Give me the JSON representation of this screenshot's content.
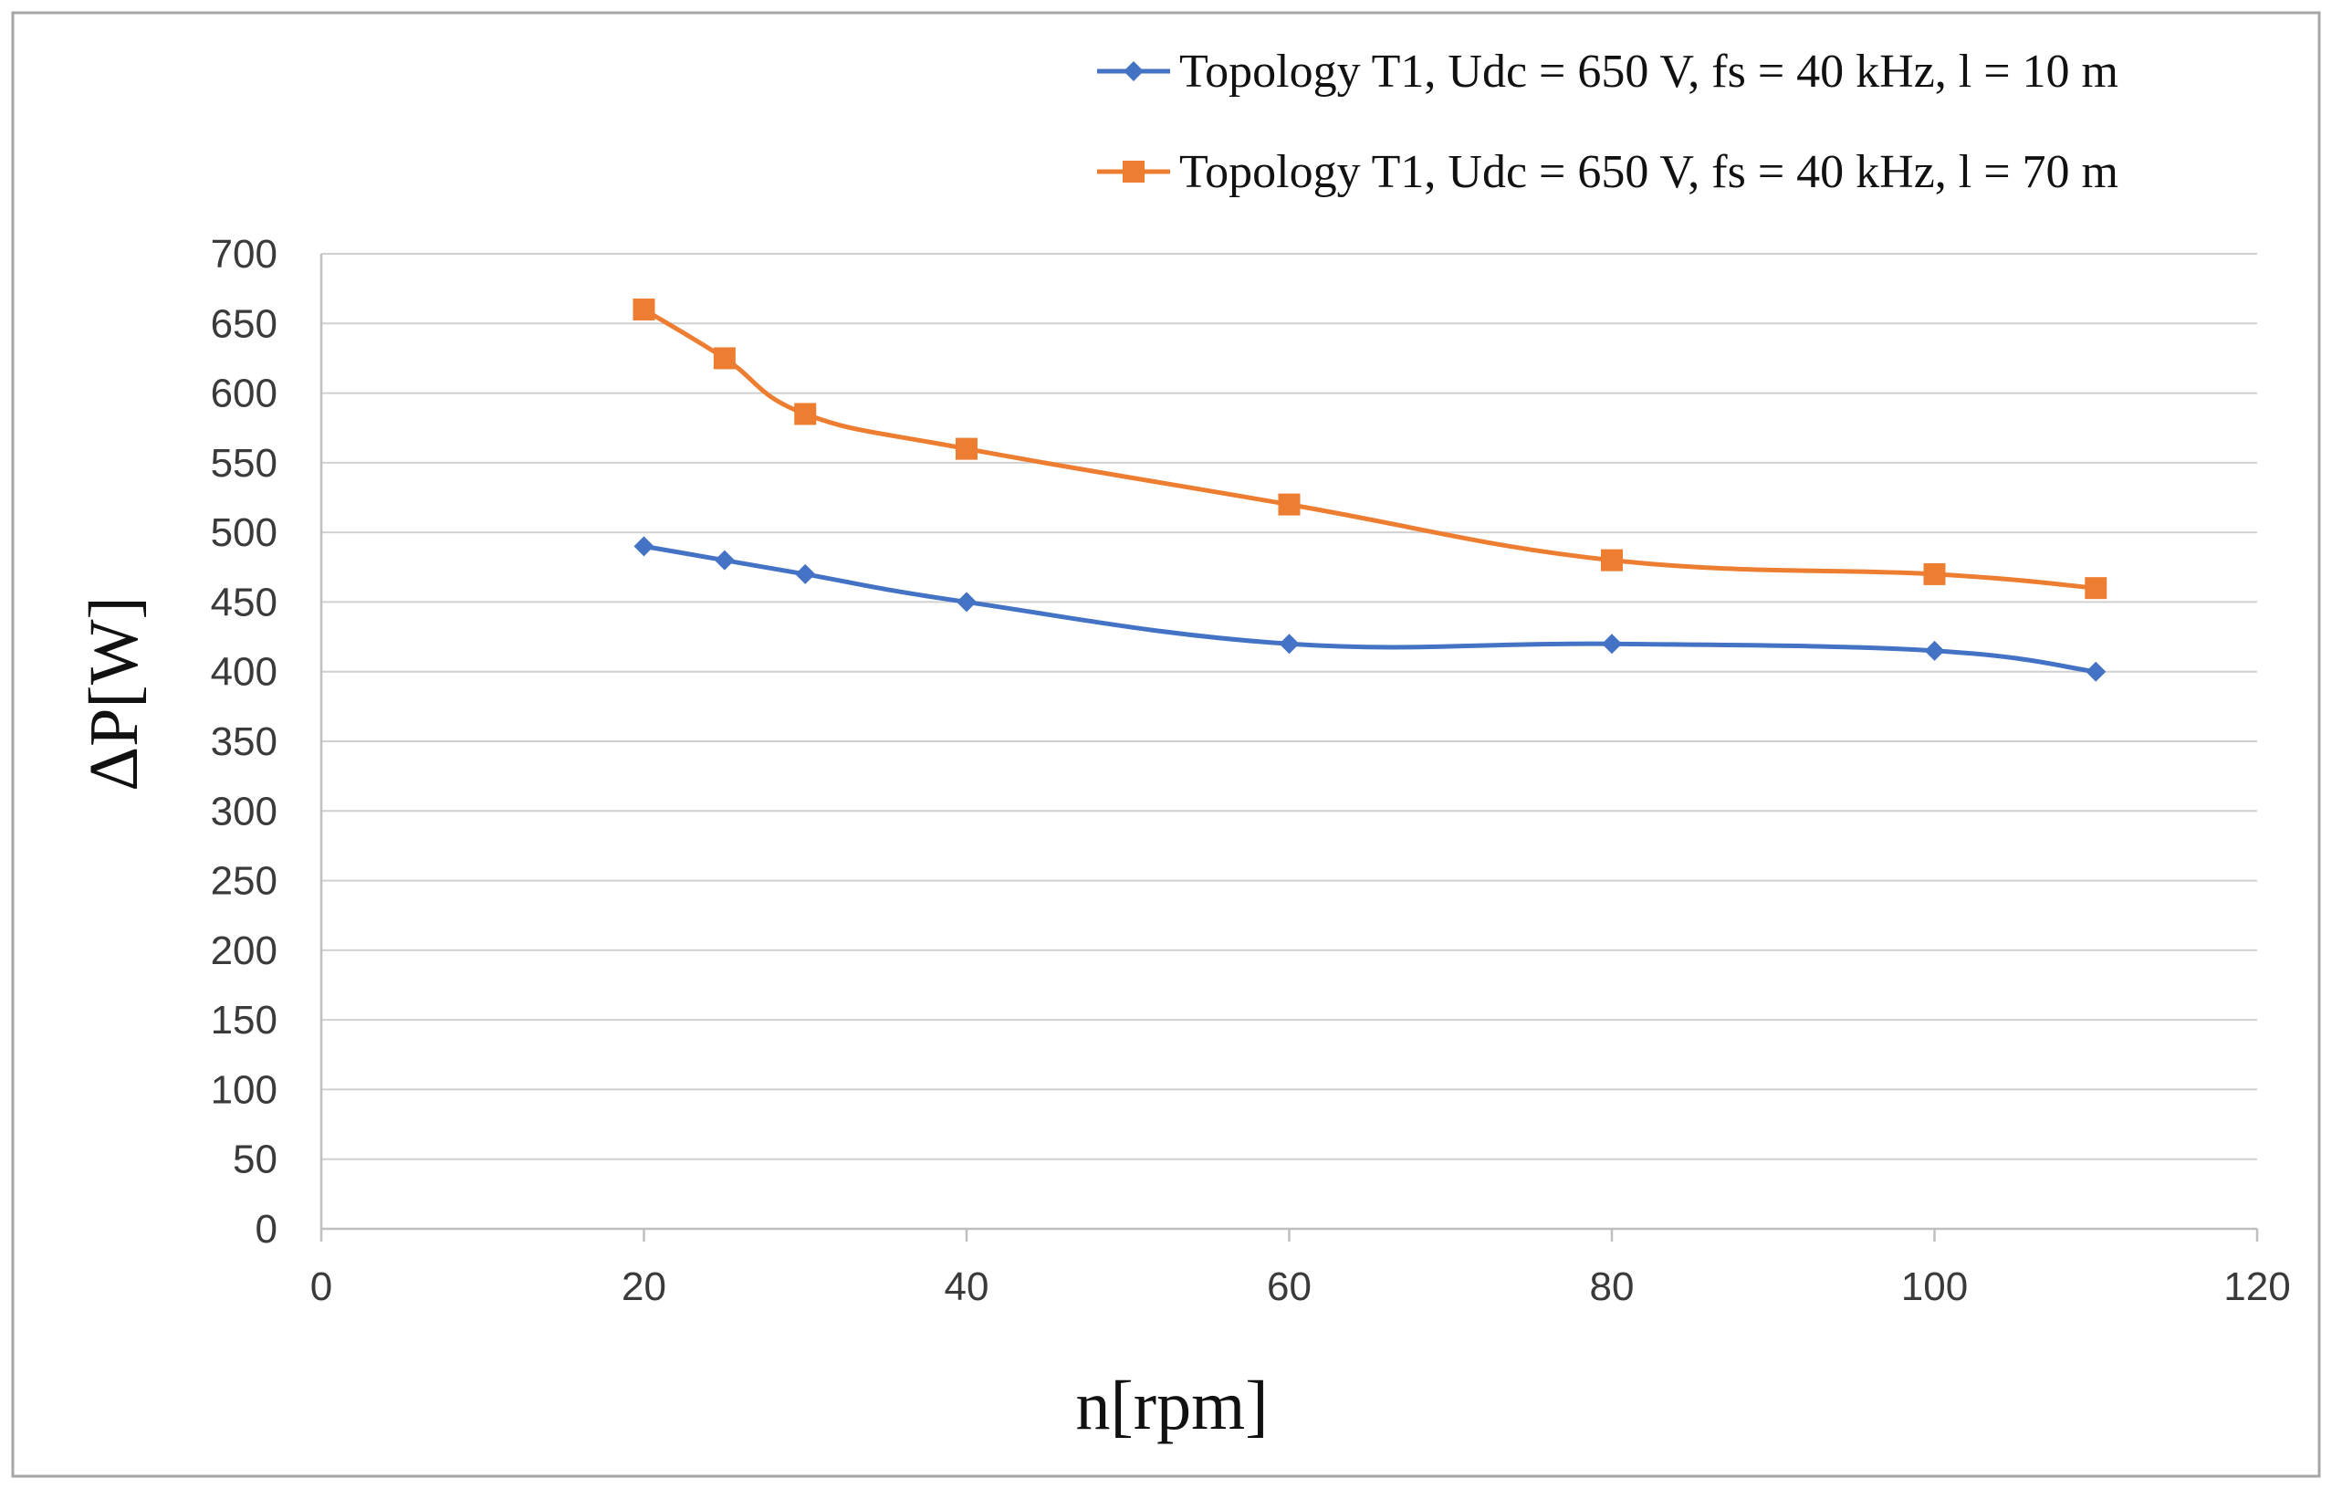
{
  "chart_data": {
    "type": "line",
    "title": "",
    "xlabel": "n[rpm]",
    "ylabel": "ΔP[W]",
    "xlim": [
      0,
      120
    ],
    "ylim": [
      0,
      700
    ],
    "xticks": [
      0,
      20,
      40,
      60,
      80,
      100,
      120
    ],
    "yticks": [
      0,
      50,
      100,
      150,
      200,
      250,
      300,
      350,
      400,
      450,
      500,
      550,
      600,
      650,
      700
    ],
    "grid": "horizontal",
    "legend_position": "top-right",
    "series": [
      {
        "name": "Topology T1, Udc = 650 V, fs = 40 kHz, l = 10 m",
        "color": "#4472C4",
        "marker": "diamond",
        "x": [
          20,
          25,
          30,
          40,
          60,
          80,
          100,
          110
        ],
        "y": [
          490,
          480,
          470,
          450,
          420,
          420,
          415,
          400
        ]
      },
      {
        "name": "Topology T1, Udc = 650 V, fs = 40 kHz, l = 70 m",
        "color": "#ED7D31",
        "marker": "square",
        "x": [
          20,
          25,
          30,
          40,
          60,
          80,
          100,
          110
        ],
        "y": [
          660,
          625,
          585,
          560,
          520,
          480,
          470,
          460
        ]
      }
    ]
  }
}
